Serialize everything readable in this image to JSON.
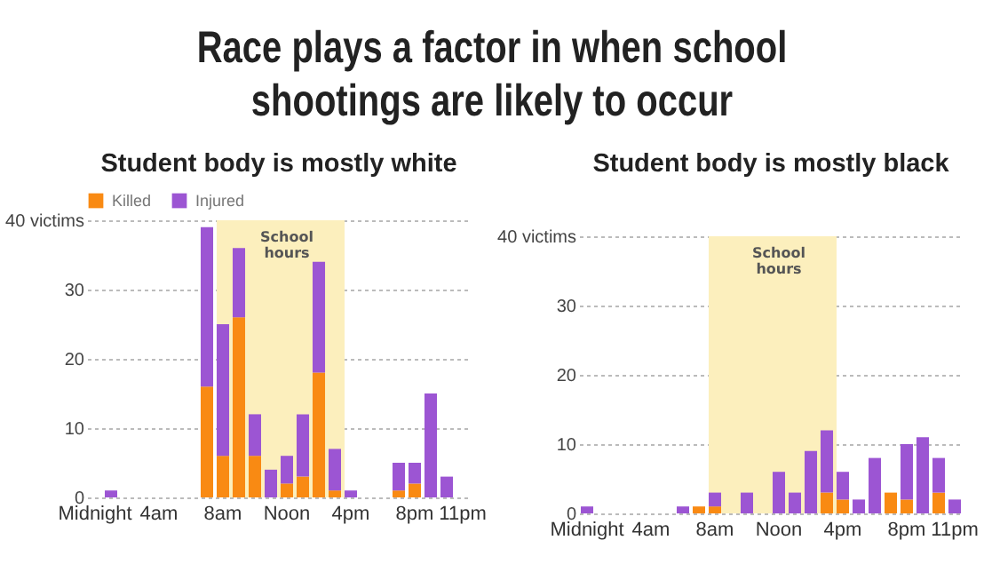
{
  "chart_data": [
    {
      "type": "bar",
      "stacked": true,
      "annotations": [
        "Race plays a factor in when school shootings are likely to occur"
      ],
      "title": "Student body is mostly white",
      "legend": "top left",
      "grid": "y",
      "categories": [
        "Midnight",
        null,
        null,
        null,
        "4am",
        null,
        null,
        null,
        "8am",
        null,
        null,
        null,
        "Noon",
        null,
        null,
        null,
        "4pm",
        null,
        null,
        null,
        "8pm",
        null,
        null,
        "11pm"
      ],
      "series": [
        {
          "name": "Killed",
          "color": "#f98a13",
          "values": [
            null,
            0,
            null,
            null,
            null,
            null,
            null,
            16,
            6,
            26,
            6,
            0,
            2,
            3,
            18,
            1,
            0,
            null,
            null,
            1,
            2,
            0,
            0,
            null
          ]
        },
        {
          "name": "Injured",
          "color": "#9c55d3",
          "values": [
            null,
            1,
            null,
            null,
            null,
            null,
            null,
            23,
            19,
            10,
            6,
            4,
            4,
            9,
            16,
            6,
            1,
            null,
            null,
            4,
            3,
            15,
            3,
            null
          ]
        }
      ],
      "ylim": [
        0,
        40
      ],
      "yticks": [
        0,
        10,
        20,
        30,
        {
          "value": 40,
          "label": "40 victims"
        }
      ],
      "bands": [
        {
          "axis": "x",
          "from": "8am",
          "to": "4pm",
          "label": "School hours",
          "color": "#fcefbd"
        }
      ]
    },
    {
      "type": "bar",
      "stacked": true,
      "title": "Student body is mostly black",
      "legend": false,
      "grid": "y",
      "categories": [
        "Midnight",
        null,
        null,
        null,
        "4am",
        null,
        null,
        null,
        "8am",
        null,
        null,
        null,
        "Noon",
        null,
        null,
        null,
        "4pm",
        null,
        null,
        null,
        "8pm",
        null,
        null,
        "11pm"
      ],
      "series": [
        {
          "color": "#f98a13",
          "values": [
            0,
            null,
            null,
            null,
            null,
            null,
            0,
            1,
            1,
            null,
            0,
            null,
            0,
            0,
            0,
            3,
            2,
            0,
            0,
            3,
            2,
            0,
            3,
            0
          ]
        },
        {
          "color": "#9c55d3",
          "values": [
            1,
            null,
            null,
            null,
            null,
            null,
            1,
            0,
            2,
            null,
            3,
            null,
            6,
            3,
            9,
            9,
            4,
            2,
            8,
            0,
            8,
            11,
            5,
            2
          ]
        }
      ],
      "ylim": [
        0,
        40
      ],
      "yticks": [
        0,
        10,
        20,
        30,
        {
          "value": 40,
          "label": "40 victims"
        }
      ],
      "bands": [
        {
          "axis": "x",
          "from": "8am",
          "to": "4pm",
          "label": "School hours",
          "color": "#fcefbd"
        }
      ]
    }
  ]
}
